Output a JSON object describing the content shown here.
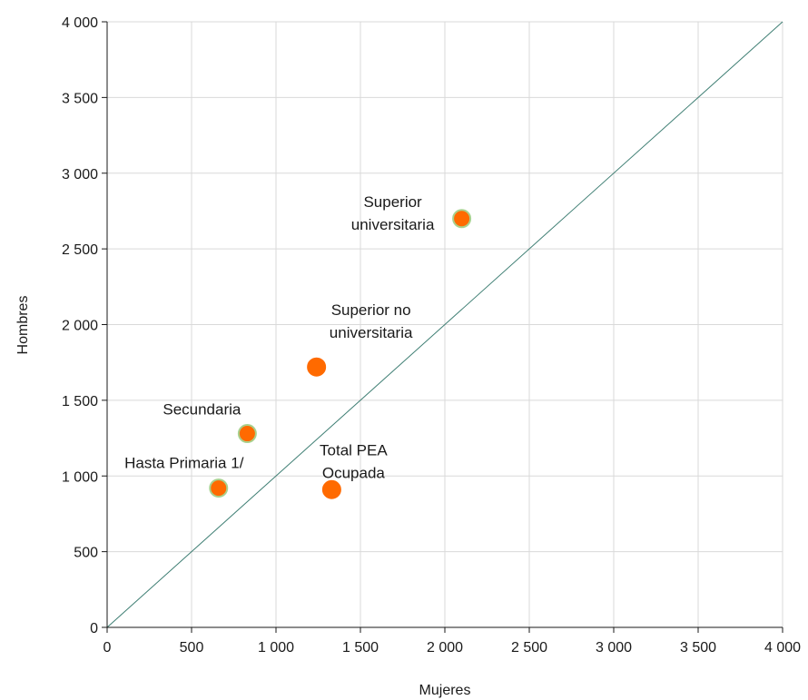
{
  "chart_data": {
    "type": "scatter",
    "title": "",
    "xlabel": "Mujeres",
    "ylabel": "Hombres",
    "xlim": [
      0,
      4000
    ],
    "ylim": [
      0,
      4000
    ],
    "xticks": [
      0,
      500,
      1000,
      1500,
      2000,
      2500,
      3000,
      3500,
      4000
    ],
    "yticks": [
      0,
      500,
      1000,
      1500,
      2000,
      2500,
      3000,
      3500,
      4000
    ],
    "xtick_labels": [
      "0",
      "500",
      "1 000",
      "1 500",
      "2 000",
      "2 500",
      "3 000",
      "3 500",
      "4 000"
    ],
    "ytick_labels": [
      "0",
      "500",
      "1 000",
      "1 500",
      "2 000",
      "2 500",
      "3 000",
      "3 500",
      "4 000"
    ],
    "grid": true,
    "reference_line": {
      "from": [
        0,
        0
      ],
      "to": [
        4000,
        4000
      ],
      "color": "#3f7f74"
    },
    "points": [
      {
        "label_lines": [
          "Hasta Primaria 1/"
        ],
        "x": 660,
        "y": 920,
        "color": "#ff6a00",
        "outline": "#a9d18e"
      },
      {
        "label_lines": [
          "Secundaria"
        ],
        "x": 830,
        "y": 1280,
        "color": "#ff6a00",
        "outline": "#a9d18e"
      },
      {
        "label_lines": [
          "Superior no",
          "universitaria"
        ],
        "x": 1240,
        "y": 1720,
        "color": "#ff6a00",
        "outline": "#ff6a00"
      },
      {
        "label_lines": [
          "Superior",
          "universitaria"
        ],
        "x": 2100,
        "y": 2700,
        "color": "#ff6a00",
        "outline": "#a9d18e"
      },
      {
        "label_lines": [
          "Total PEA",
          "Ocupada"
        ],
        "x": 1330,
        "y": 910,
        "color": "#ff6a00",
        "outline": "#ff6a00"
      }
    ]
  }
}
